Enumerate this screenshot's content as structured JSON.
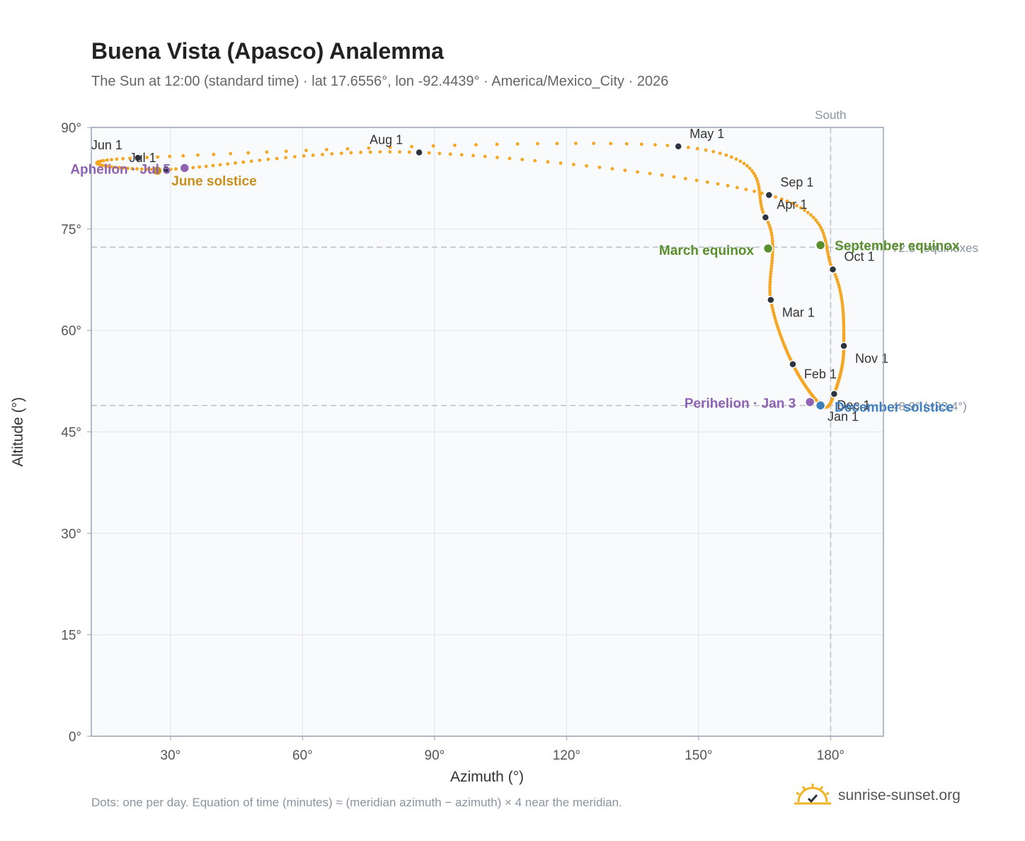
{
  "title": "Buena Vista (Apasco) Analemma",
  "subtitle": "The Sun at 12:00 (standard time) · lat 17.6556°, lon -92.4439° · America/Mexico_City · 2026",
  "footnote": "Dots: one per day. Equation of time (minutes) ≈ (meridian azimuth − azimuth) × 4 near the meridian.",
  "brand": {
    "text": "sunrise-sunset.org",
    "logo_icon": "sun-logo-icon",
    "accent": "#f0b323"
  },
  "colors": {
    "curve": "#f5a623",
    "month_dot": "#2d3340",
    "equinox": "#5a8f2e",
    "solstice_june": "#c8901a",
    "solstice_december": "#3f7fc0",
    "apsis": "#8e63b4",
    "guide": "#b8c0c8",
    "grid": "#e3e7ec",
    "plot_bg": "#f8fafc",
    "frame": "#9aa4b1"
  },
  "chart_data": {
    "type": "scatter",
    "xlabel": "Azimuth (°)",
    "ylabel": "Altitude (°)",
    "xlim": [
      12,
      192
    ],
    "ylim": [
      0,
      90
    ],
    "xticks": [
      30,
      60,
      90,
      120,
      150,
      180
    ],
    "xtick_labels": [
      "30°",
      "60°",
      "90°",
      "120°",
      "150°",
      "180°"
    ],
    "yticks": [
      0,
      15,
      30,
      45,
      60,
      75,
      90
    ],
    "ytick_labels": [
      "0°",
      "15°",
      "30°",
      "45°",
      "60°",
      "75°",
      "90°"
    ],
    "grid": true,
    "meridian": {
      "azimuth": 180,
      "label": "South"
    },
    "reference_lines": [
      {
        "altitude": 72.3,
        "label": "72.3° equinoxes"
      },
      {
        "altitude": 48.9,
        "label": "48.9° (−23.4°)"
      }
    ],
    "series": [
      {
        "points": [
          [
            178.0,
            48.9
          ],
          [
            171.4,
            55.0
          ],
          [
            166.4,
            64.5
          ],
          [
            165.2,
            76.7
          ],
          [
            145.4,
            87.2
          ],
          [
            22.6,
            85.5
          ],
          [
            29.0,
            83.8
          ],
          [
            86.5,
            86.3
          ],
          [
            166.0,
            80.0
          ],
          [
            180.5,
            69.0
          ],
          [
            183.0,
            57.7
          ],
          [
            180.8,
            50.6
          ]
        ]
      }
    ],
    "month_markers": [
      {
        "label": "Jan 1",
        "az": 178.0,
        "alt": 48.9
      },
      {
        "label": "Feb 1",
        "az": 171.4,
        "alt": 55.0
      },
      {
        "label": "Mar 1",
        "az": 166.4,
        "alt": 64.5
      },
      {
        "label": "Apr 1",
        "az": 165.2,
        "alt": 76.7
      },
      {
        "label": "May 1",
        "az": 145.4,
        "alt": 87.2
      },
      {
        "label": "Jun 1",
        "az": 22.6,
        "alt": 85.5
      },
      {
        "label": "Jul 1",
        "az": 29.0,
        "alt": 83.8
      },
      {
        "label": "Aug 1",
        "az": 86.5,
        "alt": 86.3
      },
      {
        "label": "Sep 1",
        "az": 166.0,
        "alt": 80.0
      },
      {
        "label": "Oct 1",
        "az": 180.5,
        "alt": 69.0
      },
      {
        "label": "Nov 1",
        "az": 183.0,
        "alt": 57.7
      },
      {
        "label": "Dec 1",
        "az": 180.8,
        "alt": 50.6
      }
    ],
    "events": [
      {
        "label": "March equinox",
        "az": 165.8,
        "alt": 72.1,
        "kind": "equinox"
      },
      {
        "label": "September equinox",
        "az": 177.7,
        "alt": 72.6,
        "kind": "equinox"
      },
      {
        "label": "June solstice",
        "az": 27.0,
        "alt": 83.6,
        "kind": "solstice_june"
      },
      {
        "label": "December solstice",
        "az": 177.7,
        "alt": 48.9,
        "kind": "solstice_december"
      },
      {
        "label": "Aphelion · Jul 5",
        "az": 33.2,
        "alt": 84.0,
        "kind": "apsis"
      },
      {
        "label": "Perihelion · Jan 3",
        "az": 175.3,
        "alt": 49.4,
        "kind": "apsis"
      }
    ]
  }
}
